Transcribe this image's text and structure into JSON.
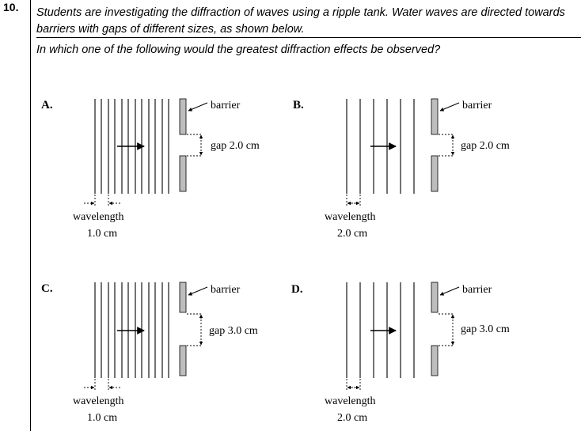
{
  "question": {
    "number": "10.",
    "stem": "Students are investigating the diffraction of waves using a ripple tank. Water waves are directed towards barriers with gaps of different sizes, as shown below.",
    "prompt": "In which one of the following would the greatest diffraction effects be observed?"
  },
  "options": [
    {
      "letter": "A.",
      "barrier_label": "barrier",
      "gap_label": "gap 2.0 cm",
      "wavelength_label": "wavelength",
      "wavelength_value": "1.0 cm"
    },
    {
      "letter": "B.",
      "barrier_label": "barrier",
      "gap_label": "gap 2.0 cm",
      "wavelength_label": "wavelength",
      "wavelength_value": "2.0 cm"
    },
    {
      "letter": "C.",
      "barrier_label": "barrier",
      "gap_label": "gap 3.0 cm",
      "wavelength_label": "wavelength",
      "wavelength_value": "1.0 cm"
    },
    {
      "letter": "D.",
      "barrier_label": "barrier",
      "gap_label": "gap 3.0 cm",
      "wavelength_label": "wavelength",
      "wavelength_value": "2.0 cm"
    }
  ]
}
